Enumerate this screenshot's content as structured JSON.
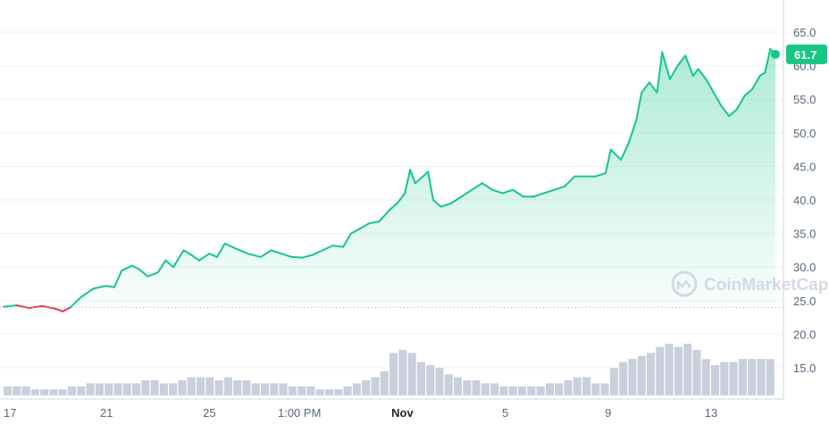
{
  "chart_data": {
    "type": "area",
    "title": "",
    "xlabel": "",
    "ylabel": "",
    "ylim": [
      10.0,
      68.0
    ],
    "y_ticks": [
      "65.0",
      "60.0",
      "55.0",
      "50.0",
      "45.0",
      "40.0",
      "35.0",
      "30.0",
      "25.0",
      "20.0",
      "15.0"
    ],
    "x_ticks": [
      {
        "label": "17",
        "t": 0.0,
        "bold": false
      },
      {
        "label": "21",
        "t": 4.0,
        "bold": false
      },
      {
        "label": "25",
        "t": 8.0,
        "bold": false
      },
      {
        "label": "1:00 PM",
        "t": 11.5,
        "bold": false
      },
      {
        "label": "Nov",
        "t": 15.5,
        "bold": true
      },
      {
        "label": "5",
        "t": 19.5,
        "bold": false
      },
      {
        "label": "9",
        "t": 23.5,
        "bold": false
      },
      {
        "label": "13",
        "t": 27.5,
        "bold": false
      }
    ],
    "baseline_value": 24.0,
    "current_price": "61.7",
    "colors": {
      "up": "#16c784",
      "down": "#ea3943",
      "volume": "#c9cfdc",
      "grid": "#eff2f5"
    },
    "price_series": [
      [
        0.0,
        24.1
      ],
      [
        0.5,
        24.3
      ],
      [
        1.0,
        23.9
      ],
      [
        1.5,
        24.2
      ],
      [
        2.0,
        23.8
      ],
      [
        2.3,
        23.4
      ],
      [
        2.6,
        24.0
      ],
      [
        3.0,
        25.5
      ],
      [
        3.5,
        26.8
      ],
      [
        4.0,
        27.2
      ],
      [
        4.3,
        27.0
      ],
      [
        4.6,
        29.5
      ],
      [
        5.0,
        30.2
      ],
      [
        5.3,
        29.6
      ],
      [
        5.6,
        28.6
      ],
      [
        6.0,
        29.2
      ],
      [
        6.3,
        31.0
      ],
      [
        6.6,
        30.0
      ],
      [
        7.0,
        32.5
      ],
      [
        7.3,
        31.8
      ],
      [
        7.6,
        31.0
      ],
      [
        8.0,
        32.0
      ],
      [
        8.3,
        31.5
      ],
      [
        8.6,
        33.5
      ],
      [
        9.0,
        32.8
      ],
      [
        9.5,
        32.0
      ],
      [
        10.0,
        31.5
      ],
      [
        10.4,
        32.5
      ],
      [
        10.8,
        32.0
      ],
      [
        11.2,
        31.5
      ],
      [
        11.6,
        31.4
      ],
      [
        12.0,
        31.8
      ],
      [
        12.4,
        32.5
      ],
      [
        12.8,
        33.2
      ],
      [
        13.2,
        33.0
      ],
      [
        13.5,
        35.0
      ],
      [
        13.8,
        35.6
      ],
      [
        14.2,
        36.5
      ],
      [
        14.6,
        36.8
      ],
      [
        15.0,
        38.5
      ],
      [
        15.3,
        39.5
      ],
      [
        15.6,
        41.0
      ],
      [
        15.8,
        44.5
      ],
      [
        16.0,
        42.5
      ],
      [
        16.3,
        43.5
      ],
      [
        16.5,
        44.2
      ],
      [
        16.7,
        40.0
      ],
      [
        17.0,
        39.0
      ],
      [
        17.4,
        39.5
      ],
      [
        17.8,
        40.5
      ],
      [
        18.2,
        41.5
      ],
      [
        18.6,
        42.5
      ],
      [
        19.0,
        41.5
      ],
      [
        19.4,
        41.0
      ],
      [
        19.8,
        41.5
      ],
      [
        20.2,
        40.5
      ],
      [
        20.6,
        40.5
      ],
      [
        21.0,
        41.0
      ],
      [
        21.4,
        41.5
      ],
      [
        21.8,
        42.0
      ],
      [
        22.2,
        43.5
      ],
      [
        22.6,
        43.5
      ],
      [
        23.0,
        43.5
      ],
      [
        23.4,
        44.0
      ],
      [
        23.6,
        47.5
      ],
      [
        24.0,
        46.0
      ],
      [
        24.3,
        48.5
      ],
      [
        24.6,
        52.0
      ],
      [
        24.8,
        56.0
      ],
      [
        25.1,
        57.5
      ],
      [
        25.4,
        56.0
      ],
      [
        25.6,
        62.0
      ],
      [
        25.9,
        58.0
      ],
      [
        26.2,
        60.0
      ],
      [
        26.5,
        61.5
      ],
      [
        26.8,
        58.5
      ],
      [
        27.0,
        59.5
      ],
      [
        27.3,
        58.0
      ],
      [
        27.6,
        56.0
      ],
      [
        27.9,
        54.0
      ],
      [
        28.2,
        52.5
      ],
      [
        28.5,
        53.5
      ],
      [
        28.8,
        55.5
      ],
      [
        29.1,
        56.5
      ],
      [
        29.4,
        58.5
      ],
      [
        29.6,
        59.0
      ],
      [
        29.8,
        62.5
      ],
      [
        30.0,
        61.7
      ]
    ],
    "volume_series": [
      3,
      3,
      3,
      2,
      2,
      2,
      2,
      3,
      3,
      4,
      4,
      4,
      4,
      4,
      4,
      5,
      5,
      4,
      4,
      5,
      6,
      6,
      6,
      5,
      6,
      5,
      5,
      4,
      4,
      4,
      4,
      3,
      3,
      3,
      2,
      2,
      2,
      3,
      4,
      5,
      6,
      8,
      14,
      15,
      14,
      11,
      10,
      9,
      7,
      6,
      5,
      5,
      4,
      4,
      3,
      3,
      3,
      3,
      3,
      4,
      4,
      5,
      6,
      6,
      4,
      4,
      9,
      11,
      12,
      13,
      14,
      16,
      17,
      16,
      17,
      15,
      12,
      10,
      11,
      11,
      12,
      12,
      12,
      12
    ]
  },
  "price_tag": "61.7",
  "watermark": {
    "brand": "CoinMarketCap",
    "logo_icon": "coinmarketcap-logo-icon"
  }
}
